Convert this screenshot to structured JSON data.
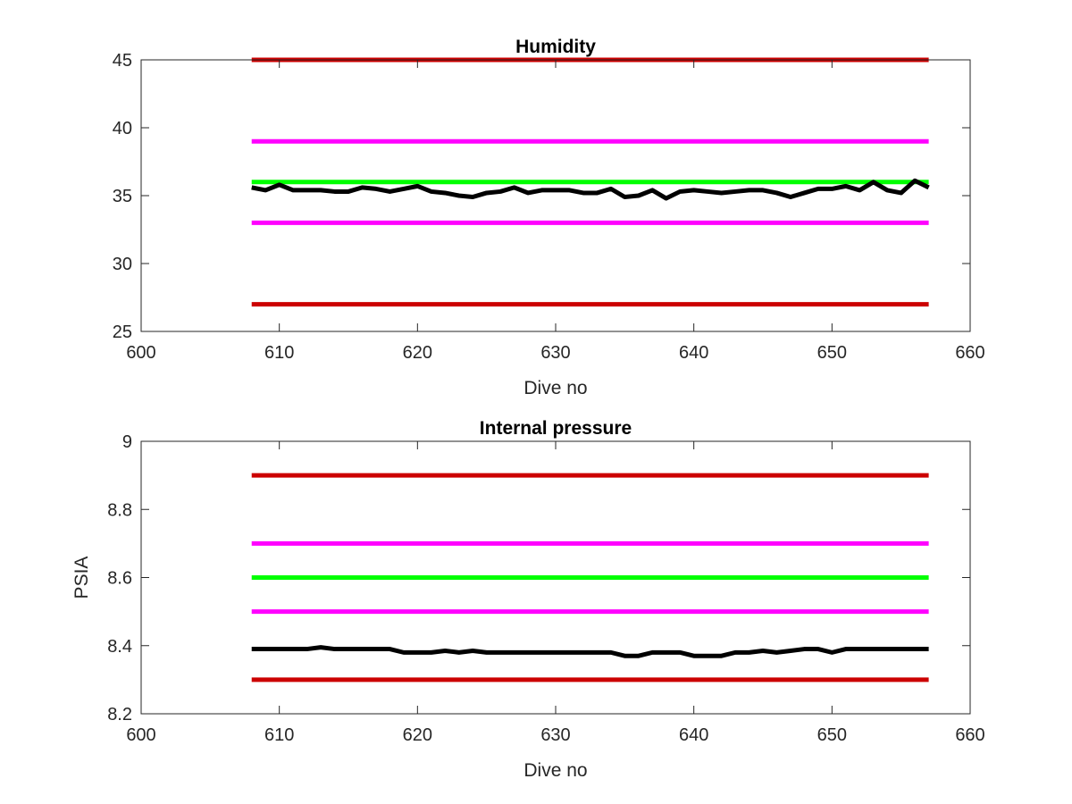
{
  "chart_data": [
    {
      "type": "line",
      "title": "Humidity",
      "xlabel": "Dive no",
      "ylabel": "",
      "xlim": [
        600,
        660
      ],
      "ylim": [
        25,
        45
      ],
      "xticks": [
        600,
        610,
        620,
        630,
        640,
        650,
        660
      ],
      "yticks": [
        25,
        30,
        35,
        40,
        45
      ],
      "grid": false,
      "legend": "none",
      "series": [
        {
          "color": "#cc0000",
          "x": [
            608,
            657
          ],
          "values": [
            45,
            45
          ]
        },
        {
          "color": "#ff00ff",
          "x": [
            608,
            657
          ],
          "values": [
            39,
            39
          ]
        },
        {
          "color": "#00ff00",
          "x": [
            608,
            657
          ],
          "values": [
            36,
            36
          ]
        },
        {
          "color": "#ff00ff",
          "x": [
            608,
            657
          ],
          "values": [
            33,
            33
          ]
        },
        {
          "color": "#cc0000",
          "x": [
            608,
            657
          ],
          "values": [
            27,
            27
          ]
        },
        {
          "color": "#000000",
          "x": [
            608,
            609,
            610,
            611,
            612,
            613,
            614,
            615,
            616,
            617,
            618,
            619,
            620,
            621,
            622,
            623,
            624,
            625,
            626,
            627,
            628,
            629,
            630,
            631,
            632,
            633,
            634,
            635,
            636,
            637,
            638,
            639,
            640,
            641,
            642,
            643,
            644,
            645,
            646,
            647,
            648,
            649,
            650,
            651,
            652,
            653,
            654,
            655,
            656,
            657
          ],
          "values": [
            35.6,
            35.4,
            35.8,
            35.4,
            35.4,
            35.4,
            35.3,
            35.3,
            35.6,
            35.5,
            35.3,
            35.5,
            35.7,
            35.3,
            35.2,
            35.0,
            34.9,
            35.2,
            35.3,
            35.6,
            35.2,
            35.4,
            35.4,
            35.4,
            35.2,
            35.2,
            35.5,
            34.9,
            35.0,
            35.4,
            34.8,
            35.3,
            35.4,
            35.3,
            35.2,
            35.3,
            35.4,
            35.4,
            35.2,
            34.9,
            35.2,
            35.5,
            35.5,
            35.7,
            35.4,
            36.0,
            35.4,
            35.2,
            36.1,
            35.6
          ]
        }
      ]
    },
    {
      "type": "line",
      "title": "Internal pressure",
      "xlabel": "Dive no",
      "ylabel": "PSIA",
      "xlim": [
        600,
        660
      ],
      "ylim": [
        8.2,
        9
      ],
      "xticks": [
        600,
        610,
        620,
        630,
        640,
        650,
        660
      ],
      "yticks": [
        "8.2",
        "8.4",
        "8.6",
        "8.8",
        "9"
      ],
      "grid": false,
      "legend": "none",
      "series": [
        {
          "color": "#cc0000",
          "x": [
            608,
            657
          ],
          "values": [
            8.9,
            8.9
          ]
        },
        {
          "color": "#ff00ff",
          "x": [
            608,
            657
          ],
          "values": [
            8.7,
            8.7
          ]
        },
        {
          "color": "#00ff00",
          "x": [
            608,
            657
          ],
          "values": [
            8.6,
            8.6
          ]
        },
        {
          "color": "#ff00ff",
          "x": [
            608,
            657
          ],
          "values": [
            8.5,
            8.5
          ]
        },
        {
          "color": "#cc0000",
          "x": [
            608,
            657
          ],
          "values": [
            8.3,
            8.3
          ]
        },
        {
          "color": "#000000",
          "x": [
            608,
            609,
            610,
            611,
            612,
            613,
            614,
            615,
            616,
            617,
            618,
            619,
            620,
            621,
            622,
            623,
            624,
            625,
            626,
            627,
            628,
            629,
            630,
            631,
            632,
            633,
            634,
            635,
            636,
            637,
            638,
            639,
            640,
            641,
            642,
            643,
            644,
            645,
            646,
            647,
            648,
            649,
            650,
            651,
            652,
            653,
            654,
            655,
            656,
            657
          ],
          "values": [
            8.39,
            8.39,
            8.39,
            8.39,
            8.39,
            8.395,
            8.39,
            8.39,
            8.39,
            8.39,
            8.39,
            8.38,
            8.38,
            8.38,
            8.385,
            8.38,
            8.385,
            8.38,
            8.38,
            8.38,
            8.38,
            8.38,
            8.38,
            8.38,
            8.38,
            8.38,
            8.38,
            8.37,
            8.37,
            8.38,
            8.38,
            8.38,
            8.37,
            8.37,
            8.37,
            8.38,
            8.38,
            8.385,
            8.38,
            8.385,
            8.39,
            8.39,
            8.38,
            8.39,
            8.39,
            8.39,
            8.39,
            8.39,
            8.39,
            8.39
          ]
        }
      ]
    }
  ]
}
